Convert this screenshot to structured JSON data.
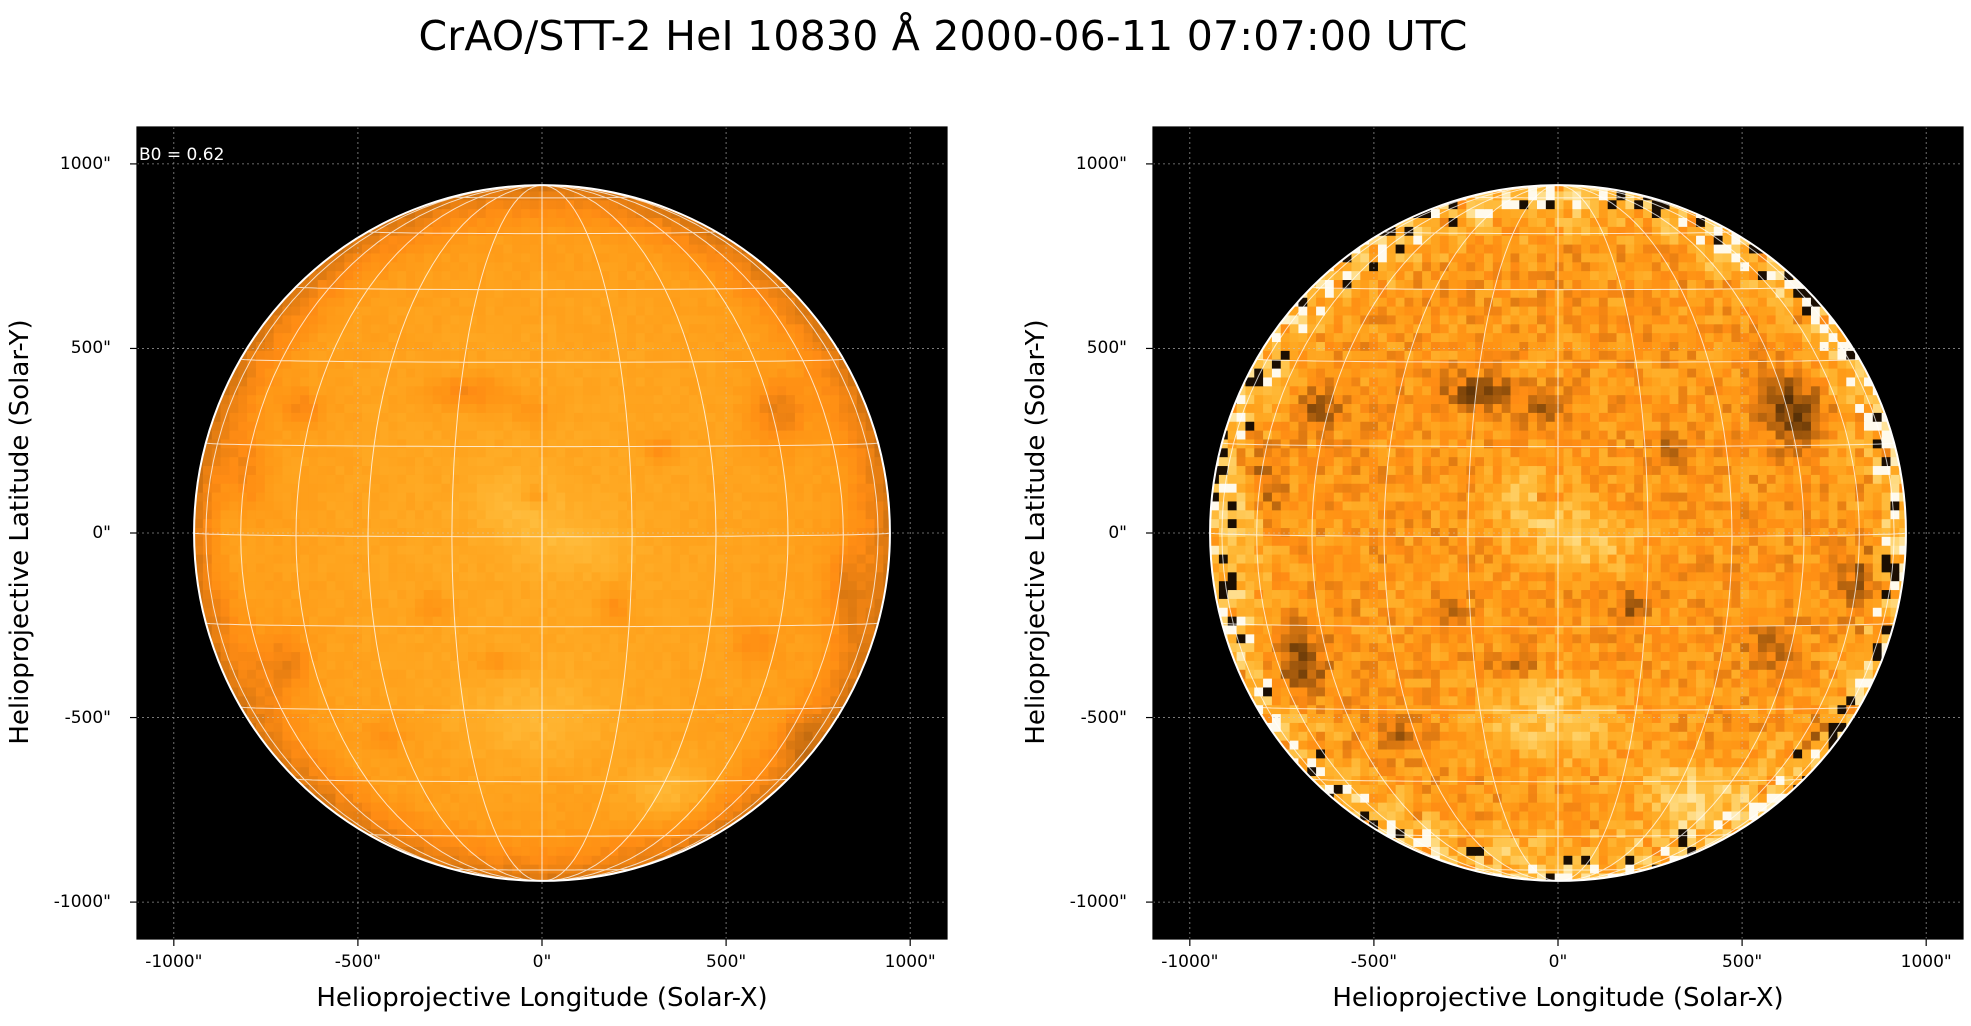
{
  "title": "CrAO/STT-2 HeI 10830 Å 2000-06-11 07:07:00 UTC",
  "panels": [
    {
      "annotation": "B0 = 0.62",
      "xlabel": "Helioprojective Longitude (Solar-X)",
      "ylabel": "Helioprojective Latitude (Solar-Y)",
      "contrast": "low"
    },
    {
      "annotation": "",
      "xlabel": "Helioprojective Longitude (Solar-X)",
      "ylabel": "Helioprojective Latitude (Solar-Y)",
      "contrast": "high"
    }
  ],
  "axes": {
    "x_ticks": [
      "-1000\"",
      "-500\"",
      "0\"",
      "500\"",
      "1000\""
    ],
    "y_ticks": [
      "1000\"",
      "500\"",
      "0\"",
      "-500\"",
      "-1000\""
    ],
    "x_tick_values": [
      -1000,
      -500,
      0,
      500,
      1000
    ],
    "y_tick_values": [
      1000,
      500,
      0,
      -500,
      -1000
    ],
    "xlim": [
      -1100,
      1100
    ],
    "ylim": [
      -1100,
      1100
    ]
  },
  "solar_radius_arcsec": 945,
  "colors": {
    "background": "#000000",
    "disk_base": "#e09a1e",
    "limb": "#ffffff",
    "grid": "#ffffff"
  }
}
